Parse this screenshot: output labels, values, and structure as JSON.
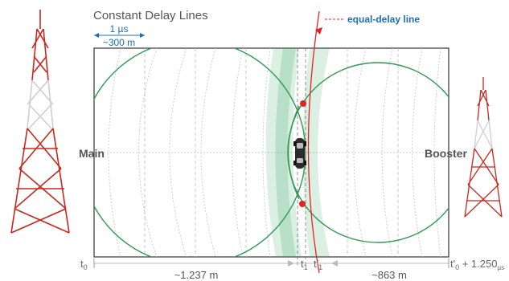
{
  "title": "Constant Delay Lines",
  "scale": {
    "time": "1 µs",
    "distance": "~300 m"
  },
  "callout": "equal-delay line",
  "transmitters": {
    "main": "Main",
    "booster": "Booster"
  },
  "timeline": {
    "t0": "t",
    "t0_sub": "0",
    "t1": "t",
    "t1_sub": "1",
    "t1prime": "t'",
    "t1prime_sub": "1",
    "t0prime_expr": "t'",
    "t0prime_sub": "0",
    "t0prime_tail": " + 1.250",
    "t0prime_unit": "µs",
    "dist_left": "~1.237 m",
    "dist_right": "~863 m"
  },
  "colors": {
    "red": "#e02424",
    "green": "#2e9a52",
    "green_band": "#3aa864",
    "blue": "#1b6fb0",
    "tower_red": "#c8281e",
    "tower_white": "#e6e6e6"
  }
}
